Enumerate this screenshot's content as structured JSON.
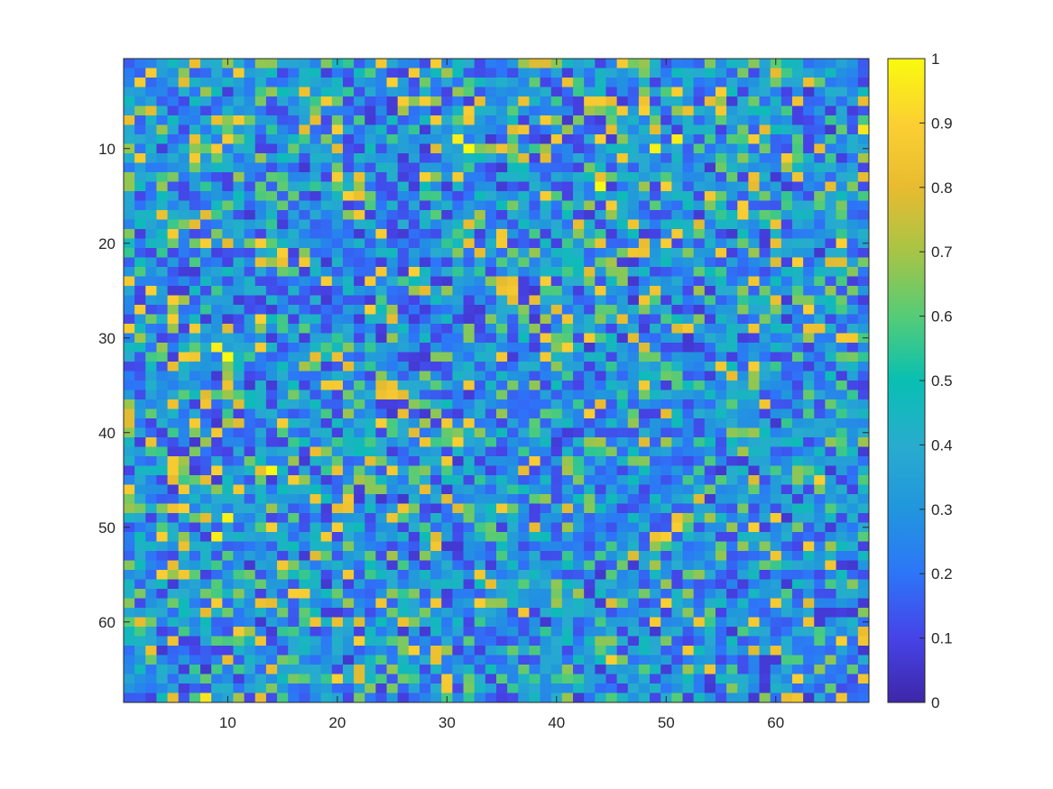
{
  "chart_data": {
    "type": "heatmap",
    "title": "",
    "xlabel": "",
    "ylabel": "",
    "grid_size": 68,
    "x_range": [
      0.5,
      68.5
    ],
    "y_range": [
      0.5,
      68.5
    ],
    "y_direction": "reversed",
    "x_ticks": [
      10,
      20,
      30,
      40,
      50,
      60
    ],
    "y_ticks": [
      10,
      20,
      30,
      40,
      50,
      60
    ],
    "colorbar": {
      "range": [
        0,
        1
      ],
      "ticks": [
        0,
        0.1,
        0.2,
        0.3,
        0.4,
        0.5,
        0.6,
        0.7,
        0.8,
        0.9,
        1
      ],
      "colormap": "parula"
    },
    "value_distribution": {
      "typical_range": [
        0.1,
        0.6
      ],
      "high_values": [
        0.8,
        1.0
      ],
      "seed": 20240607
    },
    "notable_cells": [
      {
        "row": 44,
        "col": 14,
        "value": 1.0
      },
      {
        "row": 14,
        "col": 44,
        "value": 1.0
      },
      {
        "row": 10,
        "col": 32,
        "value": 1.0
      },
      {
        "row": 10,
        "col": 49,
        "value": 0.98
      },
      {
        "row": 31,
        "col": 9,
        "value": 0.97
      },
      {
        "row": 51,
        "col": 9,
        "value": 0.97
      },
      {
        "row": 68,
        "col": 8,
        "value": 0.95
      }
    ]
  }
}
